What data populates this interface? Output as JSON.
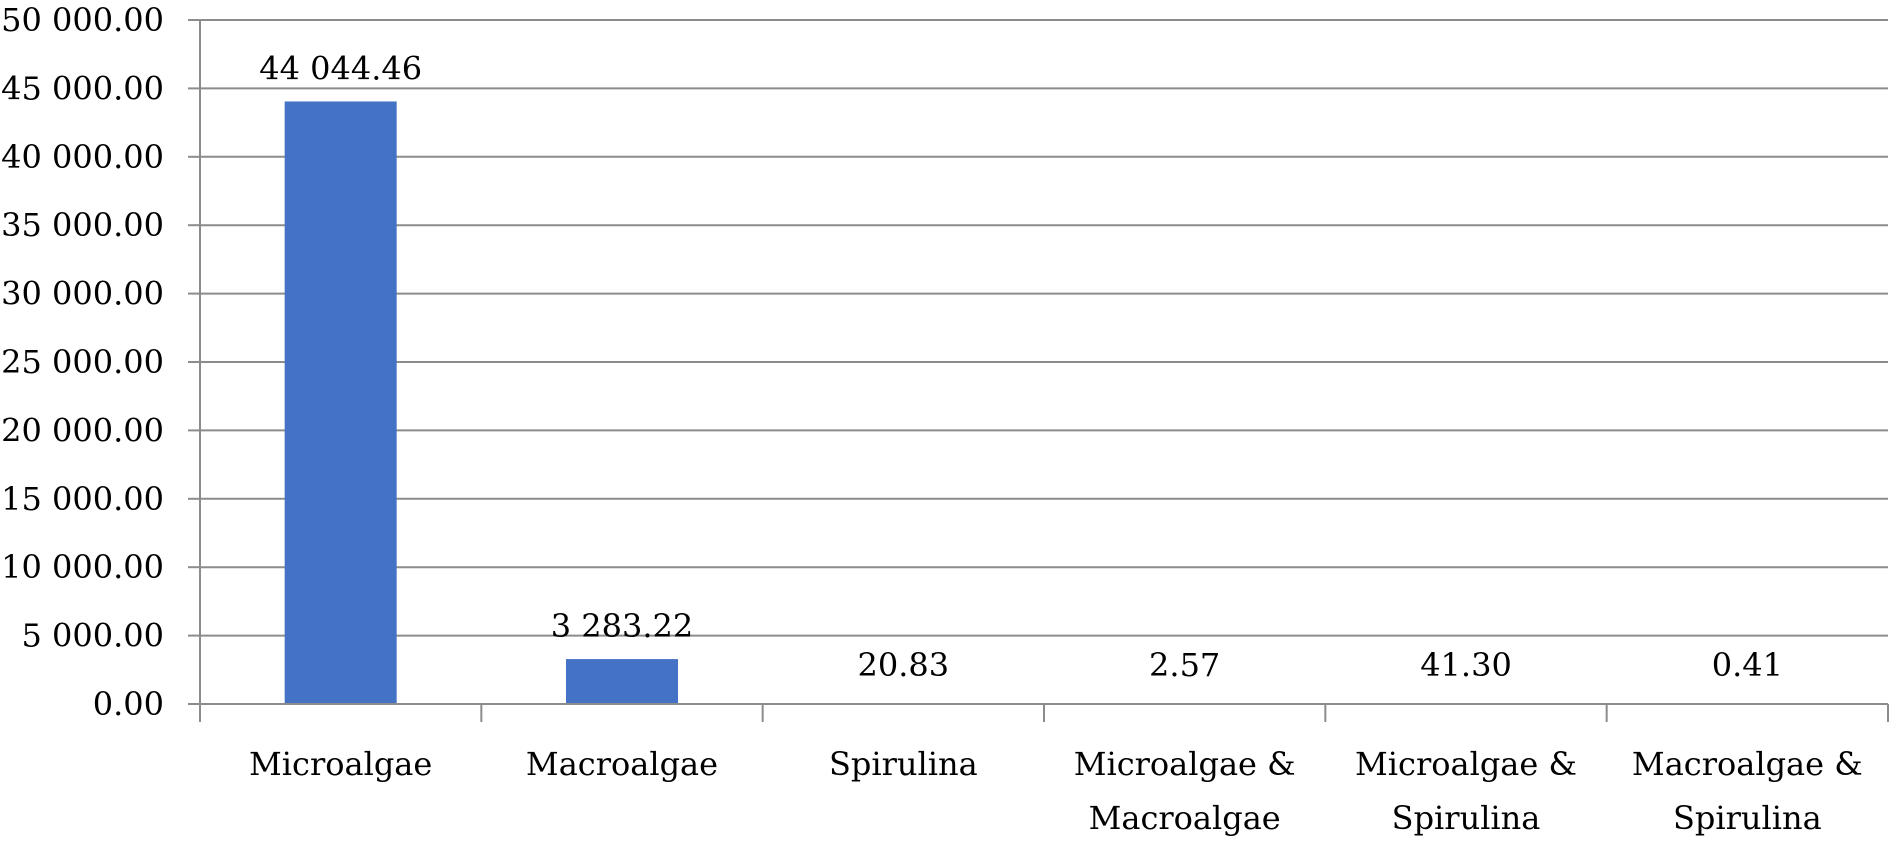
{
  "chart_data": {
    "type": "bar",
    "categories": [
      [
        "Microalgae"
      ],
      [
        "Macroalgae"
      ],
      [
        "Spirulina"
      ],
      [
        "Microalgae &",
        "Macroalgae"
      ],
      [
        "Microalgae &",
        "Spirulina"
      ],
      [
        "Macroalgae &",
        "Spirulina"
      ]
    ],
    "values": [
      44044.46,
      3283.22,
      20.83,
      2.57,
      41.3,
      0.41
    ],
    "data_labels": [
      "44 044.46",
      "3 283.22",
      "20.83",
      "2.57",
      "41.30",
      "0.41"
    ],
    "y_ticks": [
      "0.00",
      "5 000.00",
      "10 000.00",
      "15 000.00",
      "20 000.00",
      "25 000.00",
      "30 000.00",
      "35 000.00",
      "40 000.00",
      "45 000.00",
      "50 000.00"
    ],
    "ylim": [
      0,
      50000
    ],
    "grid": true,
    "legend": "none",
    "bar_color": "#4472C4",
    "grid_color": "#8C8C8C"
  }
}
